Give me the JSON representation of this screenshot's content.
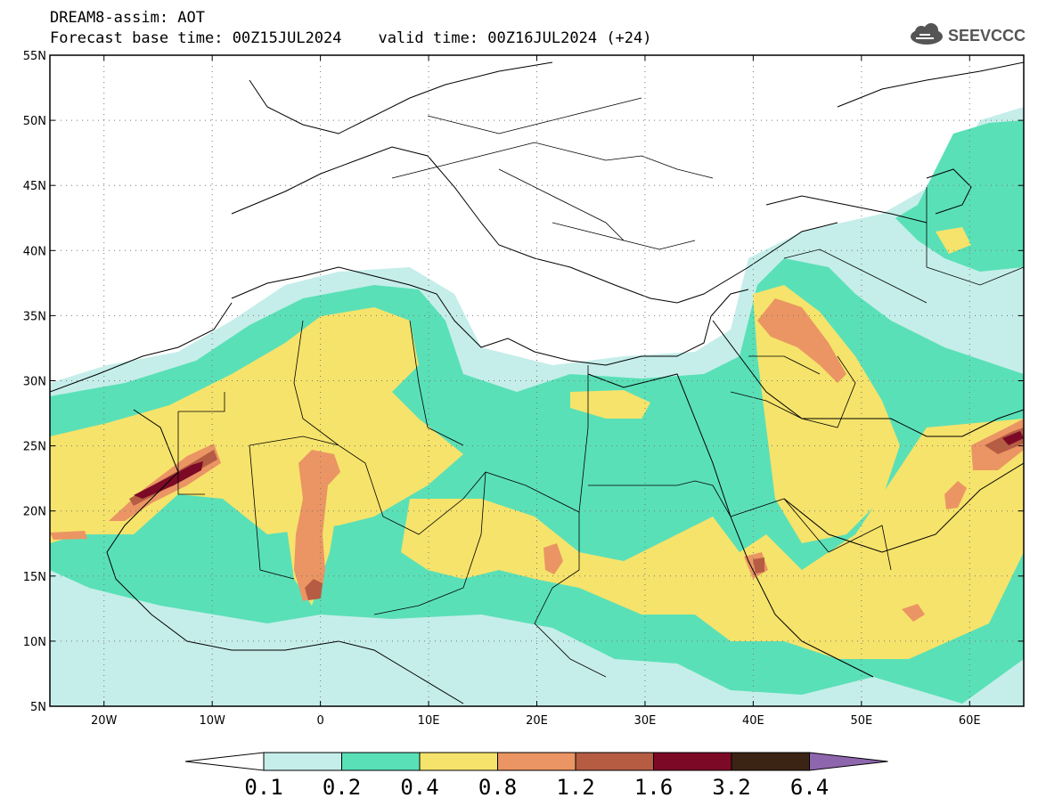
{
  "title": {
    "line1": "DREAM8-assim: AOT",
    "line2": "Forecast base time: 00Z15JUL2024    valid time: 00Z16JUL2024 (+24)"
  },
  "logo_text": "SEEVCCC",
  "map": {
    "lon_range": [
      -25,
      65
    ],
    "lat_range": [
      5,
      55
    ],
    "lat_labels": [
      "55N",
      "50N",
      "45N",
      "40N",
      "35N",
      "30N",
      "25N",
      "20N",
      "15N",
      "10N",
      "5N"
    ],
    "lat_values": [
      55,
      50,
      45,
      40,
      35,
      30,
      25,
      20,
      15,
      10,
      5
    ],
    "lon_labels": [
      "20W",
      "10W",
      "0",
      "10E",
      "20E",
      "30E",
      "40E",
      "50E",
      "60E"
    ],
    "lon_values": [
      -20,
      -10,
      0,
      10,
      20,
      30,
      40,
      50,
      60
    ],
    "grid": "dotted"
  },
  "colorbar": {
    "colors": [
      "#c5eeea",
      "#5ae0b7",
      "#f6e36b",
      "#ea9563",
      "#b65c43",
      "#7c0a26",
      "#3c2415",
      "#8e66ad"
    ],
    "labels": [
      "0.1",
      "0.2",
      "0.4",
      "0.8",
      "1.2",
      "1.6",
      "3.2",
      "6.4"
    ]
  },
  "colors": {
    "level1": "#c5eeea",
    "level2": "#5ae0b7",
    "level3": "#f6e36b",
    "level4": "#ea9563",
    "level5": "#b65c43",
    "level6": "#7c0a26"
  }
}
